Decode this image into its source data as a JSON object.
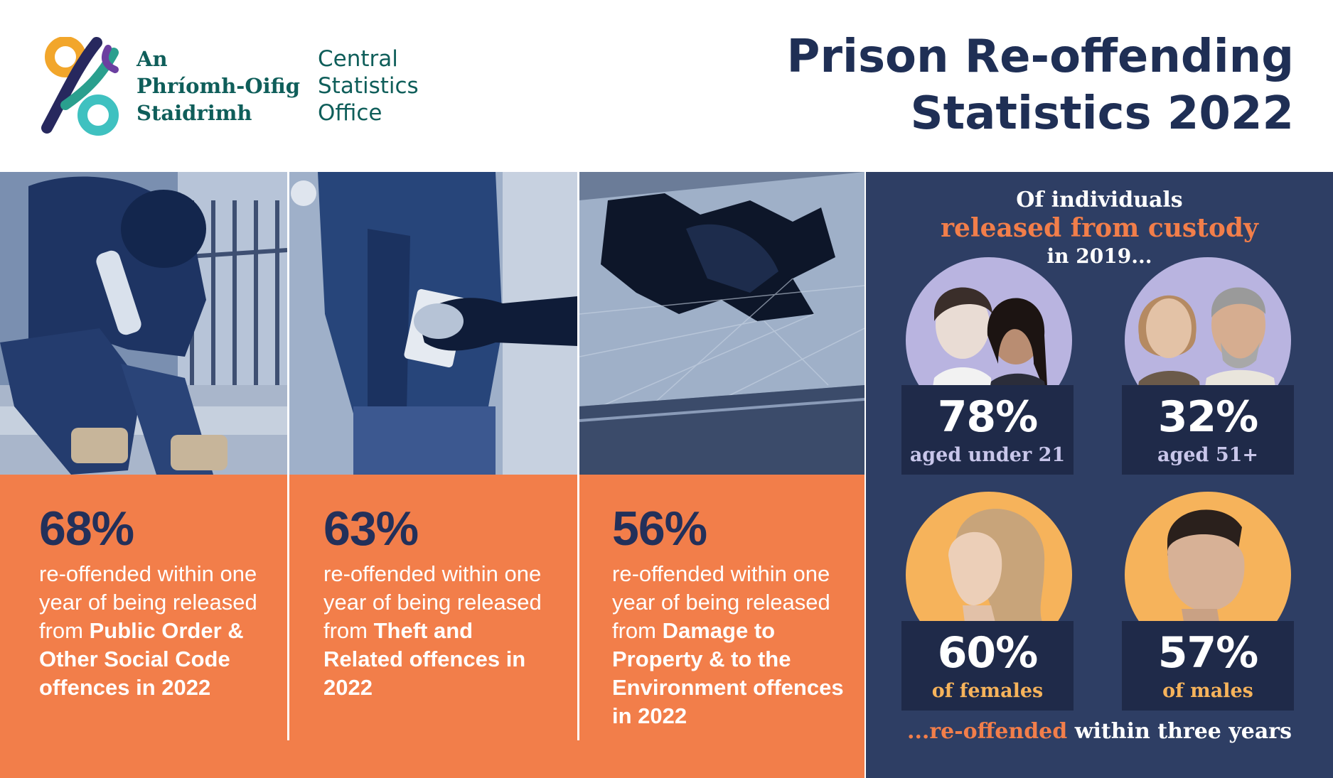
{
  "header": {
    "logo_irish_lines": [
      "An",
      "Phríomh-Oifig",
      "Staidrimh"
    ],
    "logo_english_lines": [
      "Central",
      "Statistics",
      "Office"
    ],
    "title_lines": [
      "Prison Re-offending",
      "Statistics 2022"
    ]
  },
  "panels": [
    {
      "photo_subject": "hooded person sitting with bottle",
      "percent": "68%",
      "text_plain": "re-offended within one year of being released from ",
      "text_bold": "Public Order & Other Social Code offences in 2022"
    },
    {
      "photo_subject": "pickpocket taking phone from jacket pocket",
      "percent": "63%",
      "text_plain": "re-offended within one year of being released from ",
      "text_bold": "Theft and Related offences in 2022"
    },
    {
      "photo_subject": "smashed car window",
      "percent": "56%",
      "text_plain": "re-offended within one year of being released from ",
      "text_bold": "Damage to Property & to the Environment offences in 2022"
    }
  ],
  "custody": {
    "intro_line1": "Of individuals",
    "intro_line2": "released from custody",
    "intro_line3": "in 2019...",
    "stats": [
      {
        "value": "78%",
        "label": "aged under 21",
        "circle_color": "#b9b4e0"
      },
      {
        "value": "32%",
        "label": "aged 51+",
        "circle_color": "#b9b4e0"
      },
      {
        "value": "60%",
        "label": "of females",
        "circle_color": "#f6b35b"
      },
      {
        "value": "57%",
        "label": "of males",
        "circle_color": "#f6b35b"
      }
    ],
    "outro_highlight": "...re-offended",
    "outro_rest": " within three years"
  },
  "colors": {
    "navy": "#1f2f55",
    "orange": "#f27e4a",
    "panel_bg": "#2e3e64",
    "card_bg": "#1f2a49",
    "teal": "#0f5e5a"
  }
}
